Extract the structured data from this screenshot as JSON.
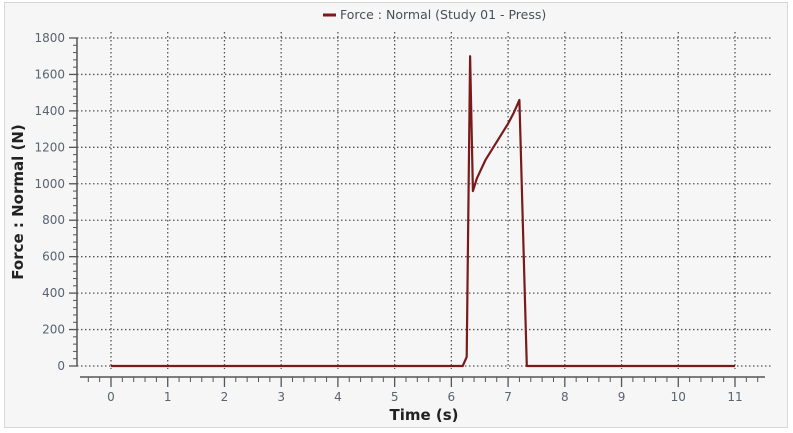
{
  "chart_data": {
    "type": "line",
    "title": "",
    "legend": [
      {
        "label": "Force : Normal (Study 01 - Press)",
        "color": "#7a1a1a"
      }
    ],
    "legend_position": "top-center",
    "xlabel": "Time (s)",
    "ylabel": "Force : Normal (N)",
    "xlim": [
      0,
      11
    ],
    "ylim": [
      0,
      1800
    ],
    "x_ticks": [
      "0",
      "1",
      "2",
      "3",
      "4",
      "5",
      "6",
      "7",
      "8",
      "9",
      "10",
      "11"
    ],
    "y_ticks": [
      "0",
      "200",
      "400",
      "600",
      "800",
      "1000",
      "1200",
      "1400",
      "1600",
      "1800"
    ],
    "grid": true,
    "series": [
      {
        "name": "Force : Normal (Study 01 - Press)",
        "color": "#7a1a1a",
        "x": [
          0,
          6.2,
          6.27,
          6.33,
          6.38,
          6.45,
          6.6,
          6.8,
          7.0,
          7.1,
          7.2,
          7.33,
          11
        ],
        "y": [
          0,
          0,
          50,
          1700,
          960,
          1030,
          1130,
          1230,
          1330,
          1390,
          1460,
          0,
          0
        ]
      }
    ]
  },
  "legend": {
    "label": "Force : Normal (Study 01 - Press)"
  },
  "axes": {
    "xlabel": "Time (s)",
    "ylabel": "Force : Normal (N)"
  },
  "colors": {
    "series": "#7a1a1a",
    "grid": "#555555",
    "axis": "#555555",
    "background": "#f6f6f6"
  }
}
